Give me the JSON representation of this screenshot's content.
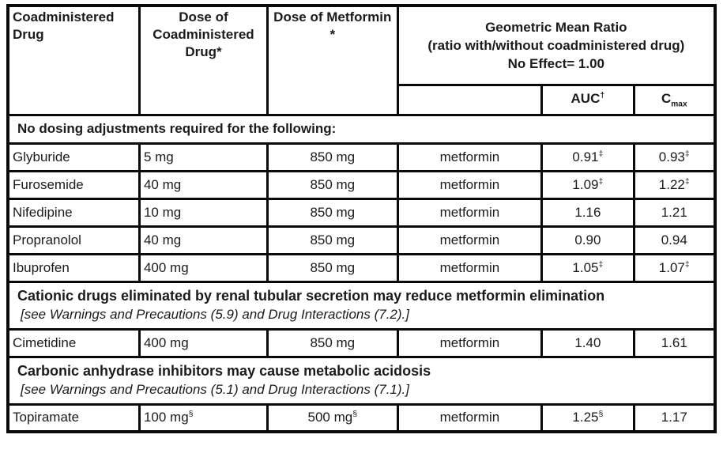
{
  "table": {
    "header": {
      "col1": "Coadministered Drug",
      "col2": "Dose of Coadministered Drug*",
      "col3": "Dose of Metformin *",
      "gmr_line1": "Geometric Mean Ratio",
      "gmr_line2": "(ratio with/without coadministered drug)",
      "gmr_line3": "No Effect= 1.00",
      "auc": "AUC†",
      "cmax_base": "C",
      "cmax_sub": "max"
    },
    "sections": {
      "no_dosing_title": "No dosing adjustments required for the following:",
      "cationic_title": "Cationic drugs eliminated by renal tubular secretion may reduce metformin elimination",
      "cationic_ref": "[see Warnings and Precautions (5.9) and Drug Interactions (7.2).]",
      "carbonic_title": "Carbonic anhydrase inhibitors may cause metabolic acidosis",
      "carbonic_ref": "[see Warnings and Precautions (5.1) and Drug Interactions (7.1).]"
    },
    "rows": [
      {
        "drug": "Glyburide",
        "coadmin_dose": "5 mg",
        "metformin_dose": "850 mg",
        "analyte": "metformin",
        "auc": "0.91‡",
        "cmax": "0.93‡"
      },
      {
        "drug": "Furosemide",
        "coadmin_dose": "40 mg",
        "metformin_dose": "850 mg",
        "analyte": "metformin",
        "auc": "1.09‡",
        "cmax": "1.22‡"
      },
      {
        "drug": "Nifedipine",
        "coadmin_dose": "10 mg",
        "metformin_dose": "850 mg",
        "analyte": "metformin",
        "auc": "1.16",
        "cmax": "1.21"
      },
      {
        "drug": "Propranolol",
        "coadmin_dose": "40 mg",
        "metformin_dose": "850 mg",
        "analyte": "metformin",
        "auc": "0.90",
        "cmax": "0.94"
      },
      {
        "drug": "Ibuprofen",
        "coadmin_dose": "400 mg",
        "metformin_dose": "850 mg",
        "analyte": "metformin",
        "auc": "1.05‡",
        "cmax": "1.07‡"
      },
      {
        "drug": "Cimetidine",
        "coadmin_dose": "400 mg",
        "metformin_dose": "850 mg",
        "analyte": "metformin",
        "auc": "1.40",
        "cmax": "1.61"
      },
      {
        "drug": "Topiramate",
        "coadmin_dose": "100 mg§",
        "metformin_dose": "500 mg§",
        "analyte": "metformin",
        "auc": "1.25§",
        "cmax": "1.17"
      }
    ],
    "colors": {
      "border": "#0a0a0a",
      "text": "#1b1b1b",
      "background": "#ffffff"
    }
  }
}
